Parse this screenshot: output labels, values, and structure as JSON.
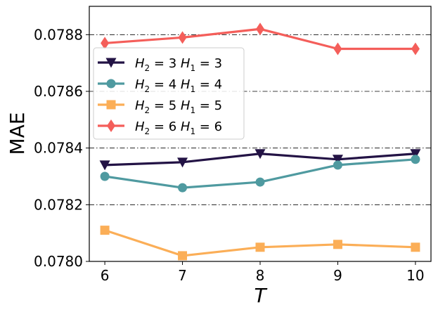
{
  "chart_data": {
    "type": "line",
    "title": "",
    "xlabel": "T",
    "ylabel": "MAE",
    "x": [
      6,
      7,
      8,
      9,
      10
    ],
    "xlim": [
      5.8,
      10.2
    ],
    "ylim": [
      0.078,
      0.0789
    ],
    "xticks": [
      6,
      7,
      8,
      9,
      10
    ],
    "xtick_labels": [
      "6",
      "7",
      "8",
      "9",
      "10"
    ],
    "yticks": [
      0.078,
      0.0782,
      0.0784,
      0.0786,
      0.0788
    ],
    "ytick_labels": [
      "0.0780",
      "0.0782",
      "0.0784",
      "0.0786",
      "0.0788"
    ],
    "grid": "horizontal dash-dot lines at y ticks",
    "legend_position": "center-left",
    "series": [
      {
        "name": "H2 = 3 H1 = 3",
        "legend": {
          "a": "H",
          "sub_a": "2",
          "eq_a": " = 3 ",
          "b": "H",
          "sub_b": "1",
          "eq_b": " = 3"
        },
        "color": "#231345",
        "marker": "triangle-down",
        "values": [
          0.07834,
          0.07835,
          0.07838,
          0.07836,
          0.07838
        ]
      },
      {
        "name": "H2 = 4 H1 = 4",
        "legend": {
          "a": "H",
          "sub_a": "2",
          "eq_a": " = 4 ",
          "b": "H",
          "sub_b": "1",
          "eq_b": " = 4"
        },
        "color": "#4f9aa0",
        "marker": "circle",
        "values": [
          0.0783,
          0.07826,
          0.07828,
          0.07834,
          0.07836
        ]
      },
      {
        "name": "H2 = 5 H1 = 5",
        "legend": {
          "a": "H",
          "sub_a": "2",
          "eq_a": " = 5 ",
          "b": "H",
          "sub_b": "1",
          "eq_b": " = 5"
        },
        "color": "#fbae57",
        "marker": "square",
        "values": [
          0.07811,
          0.07802,
          0.07805,
          0.07806,
          0.07805
        ]
      },
      {
        "name": "H2 = 6 H1 = 6",
        "legend": {
          "a": "H",
          "sub_a": "2",
          "eq_a": " = 6 ",
          "b": "H",
          "sub_b": "1",
          "eq_b": " = 6"
        },
        "color": "#f45e5a",
        "marker": "diamond",
        "values": [
          0.07877,
          0.07879,
          0.07882,
          0.07875,
          0.07875
        ]
      }
    ]
  }
}
